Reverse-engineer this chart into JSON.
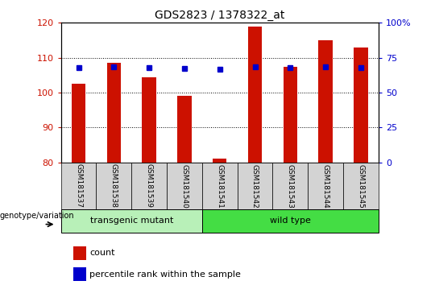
{
  "title": "GDS2823 / 1378322_at",
  "samples": [
    "GSM181537",
    "GSM181538",
    "GSM181539",
    "GSM181540",
    "GSM181541",
    "GSM181542",
    "GSM181543",
    "GSM181544",
    "GSM181545"
  ],
  "count_values": [
    102.5,
    108.5,
    104.5,
    99.0,
    81.0,
    119.0,
    107.5,
    115.0,
    113.0
  ],
  "percentile_values": [
    68.0,
    68.75,
    68.0,
    67.25,
    66.5,
    68.75,
    68.0,
    68.75,
    68.0
  ],
  "ylim_left": [
    80,
    120
  ],
  "ylim_right": [
    0,
    100
  ],
  "yticks_left": [
    80,
    90,
    100,
    110,
    120
  ],
  "yticks_right": [
    0,
    25,
    50,
    75,
    100
  ],
  "bar_color": "#cc1100",
  "dot_color": "#0000cc",
  "transgenic_color": "#b8f0b8",
  "wildtype_color": "#44dd44",
  "transgenic_label": "transgenic mutant",
  "wildtype_label": "wild type",
  "transgenic_count": 4,
  "wildtype_count": 5,
  "legend_count_label": "count",
  "legend_percentile_label": "percentile rank within the sample",
  "genotype_label": "genotype/variation",
  "bar_width": 0.4,
  "ybase": 80
}
